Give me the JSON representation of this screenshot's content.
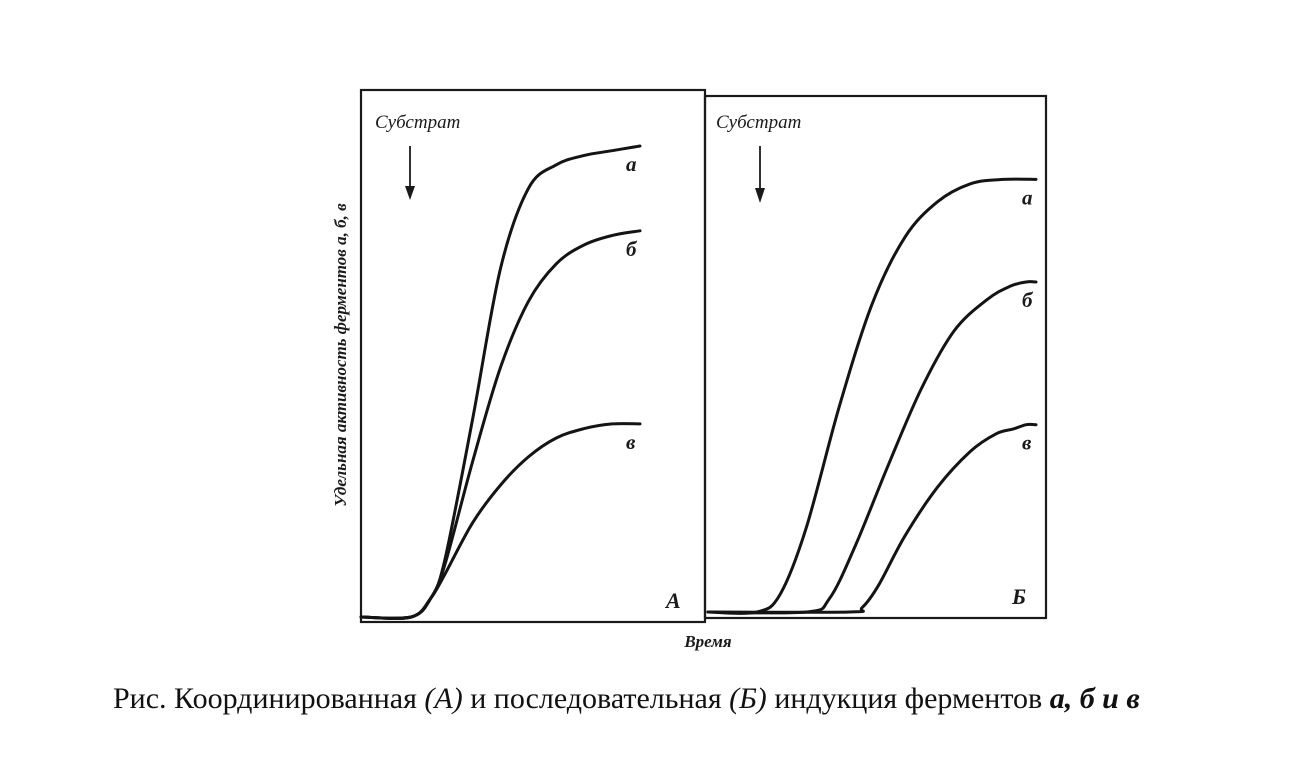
{
  "chart_data": [
    {
      "type": "line",
      "panel_label": "А",
      "annotation": "Субстрат",
      "xlabel": "Время",
      "ylabel": "Удельная активность ферментов а, б, в",
      "xlim": [
        0,
        100
      ],
      "ylim": [
        0,
        100
      ],
      "grid": false,
      "series": [
        {
          "name": "а",
          "x": [
            0,
            18,
            25,
            30,
            40,
            50,
            60,
            70,
            80,
            90,
            100
          ],
          "y": [
            0,
            0,
            4,
            12,
            42,
            74,
            91,
            96,
            98,
            99,
            100
          ]
        },
        {
          "name": "б",
          "x": [
            0,
            18,
            25,
            30,
            40,
            50,
            60,
            70,
            80,
            90,
            100
          ],
          "y": [
            0,
            0,
            4,
            11,
            33,
            53,
            67,
            75,
            79,
            81,
            82
          ]
        },
        {
          "name": "в",
          "x": [
            0,
            18,
            25,
            30,
            40,
            50,
            60,
            70,
            80,
            90,
            100
          ],
          "y": [
            0,
            0,
            4,
            9,
            20,
            28,
            34,
            38,
            40,
            41,
            41
          ]
        }
      ]
    },
    {
      "type": "line",
      "panel_label": "Б",
      "annotation": "Субстрат",
      "xlabel": "Время",
      "ylabel": "Удельная активность ферментов а, б, в",
      "xlim": [
        0,
        100
      ],
      "ylim": [
        0,
        100
      ],
      "grid": false,
      "series": [
        {
          "name": "а",
          "x": [
            0,
            15,
            22,
            30,
            40,
            50,
            60,
            70,
            80,
            90,
            100
          ],
          "y": [
            0,
            0,
            4,
            19,
            46,
            69,
            84,
            92,
            96,
            97,
            97
          ]
        },
        {
          "name": "б",
          "x": [
            0,
            30,
            37,
            45,
            55,
            65,
            75,
            85,
            92,
            97,
            100
          ],
          "y": [
            0,
            0,
            3,
            15,
            33,
            50,
            63,
            70,
            73,
            74,
            74
          ]
        },
        {
          "name": "в",
          "x": [
            0,
            43,
            47,
            52,
            60,
            70,
            80,
            88,
            93,
            97,
            100
          ],
          "y": [
            0,
            0,
            1,
            6,
            17,
            28,
            36,
            40,
            41,
            42,
            42
          ]
        }
      ]
    }
  ],
  "caption": {
    "prefix": "Рис. Координированная ",
    "a_label": "(А)",
    "middle": " и последовательная ",
    "b_label": "(Б)",
    "suffix": " индукция ферментов ",
    "enzymes": "а, б и в"
  },
  "colors": {
    "ink": "#141414",
    "background": "#ffffff"
  }
}
